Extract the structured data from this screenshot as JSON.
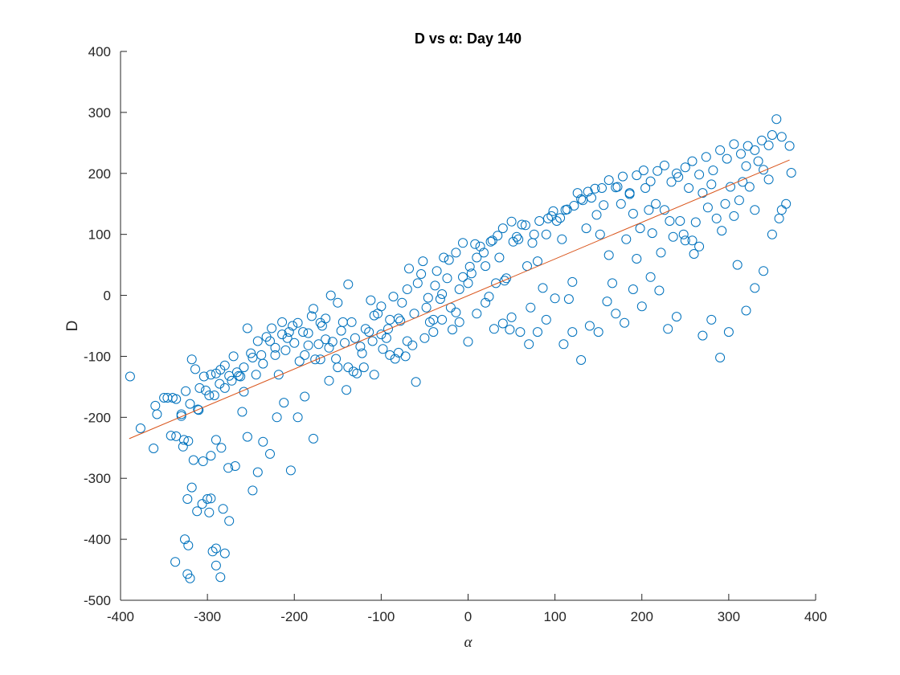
{
  "chart_data": {
    "type": "scatter",
    "title": "D vs α: Day 140",
    "xlabel": "α",
    "ylabel": "D",
    "xlim": [
      -400,
      400
    ],
    "ylim": [
      -500,
      400
    ],
    "xticks": [
      -400,
      -300,
      -200,
      -100,
      0,
      100,
      200,
      300,
      400
    ],
    "yticks": [
      -500,
      -400,
      -300,
      -200,
      -100,
      0,
      100,
      200,
      300,
      400
    ],
    "grid": false,
    "marker_color": "#0072BD",
    "line_color": "#D95319",
    "fit_line": {
      "x": [
        -390,
        370
      ],
      "y": [
        -235,
        222
      ]
    },
    "points": [
      [
        -389,
        -133
      ],
      [
        -377,
        -218
      ],
      [
        -360,
        -181
      ],
      [
        -358,
        -195
      ],
      [
        -362,
        -251
      ],
      [
        -340,
        -168
      ],
      [
        -336,
        -170
      ],
      [
        -330,
        -195
      ],
      [
        -325,
        -157
      ],
      [
        -318,
        -105
      ],
      [
        -314,
        -121
      ],
      [
        -309,
        -152
      ],
      [
        -304,
        -133
      ],
      [
        -298,
        -164
      ],
      [
        -290,
        -128
      ],
      [
        -286,
        -145
      ],
      [
        -280,
        -115
      ],
      [
        -272,
        -140
      ],
      [
        -266,
        -126
      ],
      [
        -262,
        -133
      ],
      [
        -258,
        -118
      ],
      [
        -250,
        -95
      ],
      [
        -244,
        -130
      ],
      [
        -236,
        -112
      ],
      [
        -228,
        -75
      ],
      [
        -222,
        -86
      ],
      [
        -214,
        -64
      ],
      [
        -208,
        -70
      ],
      [
        -202,
        -50
      ],
      [
        -196,
        -45
      ],
      [
        -190,
        -60
      ],
      [
        -184,
        -82
      ],
      [
        -178,
        -22
      ],
      [
        -170,
        -45
      ],
      [
        -164,
        -38
      ],
      [
        -158,
        0
      ],
      [
        -150,
        -12
      ],
      [
        -144,
        -44
      ],
      [
        -138,
        18
      ],
      [
        -130,
        -70
      ],
      [
        -122,
        -95
      ],
      [
        -114,
        -60
      ],
      [
        -108,
        -33
      ],
      [
        -100,
        -18
      ],
      [
        -92,
        -55
      ],
      [
        -86,
        -2
      ],
      [
        -78,
        -42
      ],
      [
        -70,
        10
      ],
      [
        -62,
        -30
      ],
      [
        -54,
        35
      ],
      [
        -46,
        -4
      ],
      [
        -38,
        16
      ],
      [
        -30,
        2
      ],
      [
        -22,
        58
      ],
      [
        -14,
        70
      ],
      [
        -6,
        86
      ],
      [
        2,
        47
      ],
      [
        10,
        62
      ],
      [
        18,
        70
      ],
      [
        26,
        88
      ],
      [
        34,
        98
      ],
      [
        42,
        24
      ],
      [
        50,
        121
      ],
      [
        58,
        92
      ],
      [
        66,
        115
      ],
      [
        74,
        86
      ],
      [
        82,
        122
      ],
      [
        90,
        100
      ],
      [
        98,
        138
      ],
      [
        106,
        127
      ],
      [
        114,
        141
      ],
      [
        122,
        147
      ],
      [
        130,
        158
      ],
      [
        138,
        170
      ],
      [
        146,
        175
      ],
      [
        154,
        176
      ],
      [
        162,
        189
      ],
      [
        170,
        177
      ],
      [
        178,
        195
      ],
      [
        186,
        168
      ],
      [
        194,
        197
      ],
      [
        202,
        205
      ],
      [
        210,
        187
      ],
      [
        218,
        204
      ],
      [
        226,
        213
      ],
      [
        234,
        186
      ],
      [
        242,
        194
      ],
      [
        250,
        210
      ],
      [
        258,
        220
      ],
      [
        266,
        198
      ],
      [
        274,
        227
      ],
      [
        282,
        205
      ],
      [
        290,
        238
      ],
      [
        298,
        224
      ],
      [
        306,
        248
      ],
      [
        314,
        232
      ],
      [
        322,
        245
      ],
      [
        330,
        238
      ],
      [
        338,
        254
      ],
      [
        346,
        246
      ],
      [
        350,
        263
      ],
      [
        355,
        289
      ],
      [
        361,
        260
      ],
      [
        370,
        245
      ],
      [
        372,
        201
      ],
      [
        -336,
        -231
      ],
      [
        -328,
        -248
      ],
      [
        -322,
        -239
      ],
      [
        -316,
        -270
      ],
      [
        -311,
        -187
      ],
      [
        -305,
        -272
      ],
      [
        -296,
        -263
      ],
      [
        -290,
        -237
      ],
      [
        -284,
        -250
      ],
      [
        -276,
        -283
      ],
      [
        -268,
        -280
      ],
      [
        -260,
        -191
      ],
      [
        -254,
        -232
      ],
      [
        -248,
        -320
      ],
      [
        -242,
        -290
      ],
      [
        -236,
        -240
      ],
      [
        -228,
        -260
      ],
      [
        -220,
        -200
      ],
      [
        -212,
        -176
      ],
      [
        -204,
        -287
      ],
      [
        -196,
        -200
      ],
      [
        -188,
        -166
      ],
      [
        -178,
        -235
      ],
      [
        -170,
        -105
      ],
      [
        -160,
        -140
      ],
      [
        -150,
        -118
      ],
      [
        -140,
        -155
      ],
      [
        -132,
        -125
      ],
      [
        -120,
        -118
      ],
      [
        -110,
        -75
      ],
      [
        -100,
        -64
      ],
      [
        -90,
        -98
      ],
      [
        -80,
        -94
      ],
      [
        -70,
        -75
      ],
      [
        -60,
        -142
      ],
      [
        -50,
        -70
      ],
      [
        -40,
        -60
      ],
      [
        -30,
        -40
      ],
      [
        -20,
        -20
      ],
      [
        -10,
        -44
      ],
      [
        0,
        -76
      ],
      [
        10,
        -30
      ],
      [
        20,
        -12
      ],
      [
        30,
        -55
      ],
      [
        40,
        -46
      ],
      [
        50,
        -36
      ],
      [
        60,
        -60
      ],
      [
        70,
        -80
      ],
      [
        80,
        -60
      ],
      [
        90,
        -40
      ],
      [
        100,
        -5
      ],
      [
        110,
        -80
      ],
      [
        120,
        -60
      ],
      [
        130,
        -106
      ],
      [
        140,
        -50
      ],
      [
        150,
        -60
      ],
      [
        160,
        -10
      ],
      [
        170,
        -30
      ],
      [
        180,
        -45
      ],
      [
        190,
        10
      ],
      [
        200,
        -18
      ],
      [
        210,
        30
      ],
      [
        220,
        8
      ],
      [
        230,
        -55
      ],
      [
        240,
        -35
      ],
      [
        250,
        90
      ],
      [
        260,
        68
      ],
      [
        270,
        -66
      ],
      [
        280,
        -40
      ],
      [
        290,
        -102
      ],
      [
        300,
        -60
      ],
      [
        310,
        50
      ],
      [
        320,
        -25
      ],
      [
        330,
        12
      ],
      [
        340,
        40
      ],
      [
        350,
        100
      ],
      [
        358,
        126
      ],
      [
        361,
        140
      ],
      [
        366,
        150
      ],
      [
        -323,
        -334
      ],
      [
        -318,
        -315
      ],
      [
        -312,
        -354
      ],
      [
        -306,
        -342
      ],
      [
        -300,
        -334
      ],
      [
        -294,
        -420
      ],
      [
        -290,
        -415
      ],
      [
        -285,
        -462
      ],
      [
        -280,
        -423
      ],
      [
        -275,
        -370
      ],
      [
        -322,
        -410
      ],
      [
        -326,
        -400
      ],
      [
        -323,
        -457
      ],
      [
        -320,
        -464
      ],
      [
        -337,
        -437
      ],
      [
        -290,
        -443
      ],
      [
        -298,
        -356
      ],
      [
        -282,
        -350
      ],
      [
        -296,
        -333
      ],
      [
        -350,
        -168
      ],
      [
        -346,
        -168
      ],
      [
        -342,
        -230
      ],
      [
        -330,
        -198
      ],
      [
        -327,
        -237
      ],
      [
        -320,
        -178
      ],
      [
        -310,
        -188
      ],
      [
        -302,
        -156
      ],
      [
        -296,
        -130
      ],
      [
        -292,
        -164
      ],
      [
        -285,
        -122
      ],
      [
        -280,
        -152
      ],
      [
        -275,
        -132
      ],
      [
        -270,
        -100
      ],
      [
        -264,
        -132
      ],
      [
        -258,
        -158
      ],
      [
        -254,
        -54
      ],
      [
        -248,
        -102
      ],
      [
        -242,
        -75
      ],
      [
        -238,
        -98
      ],
      [
        -232,
        -68
      ],
      [
        -226,
        -54
      ],
      [
        -222,
        -98
      ],
      [
        -218,
        -130
      ],
      [
        -214,
        -44
      ],
      [
        -210,
        -90
      ],
      [
        -206,
        -60
      ],
      [
        -200,
        -78
      ],
      [
        -194,
        -108
      ],
      [
        -188,
        -98
      ],
      [
        -184,
        -62
      ],
      [
        -180,
        -34
      ],
      [
        -176,
        -105
      ],
      [
        -172,
        -80
      ],
      [
        -168,
        -50
      ],
      [
        -164,
        -72
      ],
      [
        -160,
        -86
      ],
      [
        -156,
        -76
      ],
      [
        -152,
        -104
      ],
      [
        -146,
        -58
      ],
      [
        -142,
        -78
      ],
      [
        -138,
        -118
      ],
      [
        -134,
        -44
      ],
      [
        -128,
        -128
      ],
      [
        -124,
        -84
      ],
      [
        -118,
        -55
      ],
      [
        -112,
        -8
      ],
      [
        -108,
        -130
      ],
      [
        -104,
        -30
      ],
      [
        -98,
        -88
      ],
      [
        -94,
        -70
      ],
      [
        -90,
        -40
      ],
      [
        -84,
        -104
      ],
      [
        -80,
        -38
      ],
      [
        -76,
        -12
      ],
      [
        -72,
        -100
      ],
      [
        -68,
        44
      ],
      [
        -64,
        -82
      ],
      [
        -58,
        20
      ],
      [
        -52,
        56
      ],
      [
        -48,
        -20
      ],
      [
        -44,
        -44
      ],
      [
        -40,
        -40
      ],
      [
        -36,
        40
      ],
      [
        -32,
        -6
      ],
      [
        -28,
        62
      ],
      [
        -24,
        28
      ],
      [
        -18,
        -56
      ],
      [
        -14,
        -28
      ],
      [
        -10,
        10
      ],
      [
        -6,
        30
      ],
      [
        0,
        20
      ],
      [
        4,
        36
      ],
      [
        8,
        84
      ],
      [
        14,
        80
      ],
      [
        20,
        48
      ],
      [
        24,
        -2
      ],
      [
        28,
        90
      ],
      [
        32,
        20
      ],
      [
        36,
        62
      ],
      [
        40,
        110
      ],
      [
        44,
        28
      ],
      [
        48,
        -56
      ],
      [
        52,
        88
      ],
      [
        56,
        96
      ],
      [
        62,
        116
      ],
      [
        68,
        48
      ],
      [
        72,
        -20
      ],
      [
        76,
        100
      ],
      [
        80,
        56
      ],
      [
        86,
        12
      ],
      [
        92,
        126
      ],
      [
        96,
        130
      ],
      [
        102,
        122
      ],
      [
        108,
        92
      ],
      [
        112,
        140
      ],
      [
        116,
        -6
      ],
      [
        120,
        22
      ],
      [
        126,
        168
      ],
      [
        132,
        156
      ],
      [
        136,
        110
      ],
      [
        142,
        160
      ],
      [
        148,
        132
      ],
      [
        152,
        100
      ],
      [
        156,
        148
      ],
      [
        162,
        66
      ],
      [
        166,
        20
      ],
      [
        172,
        178
      ],
      [
        176,
        150
      ],
      [
        182,
        92
      ],
      [
        186,
        166
      ],
      [
        190,
        134
      ],
      [
        194,
        60
      ],
      [
        198,
        110
      ],
      [
        204,
        176
      ],
      [
        208,
        140
      ],
      [
        212,
        102
      ],
      [
        216,
        150
      ],
      [
        222,
        70
      ],
      [
        226,
        140
      ],
      [
        232,
        122
      ],
      [
        236,
        96
      ],
      [
        240,
        200
      ],
      [
        244,
        122
      ],
      [
        248,
        100
      ],
      [
        254,
        176
      ],
      [
        258,
        90
      ],
      [
        262,
        120
      ],
      [
        266,
        80
      ],
      [
        270,
        168
      ],
      [
        276,
        144
      ],
      [
        280,
        182
      ],
      [
        286,
        126
      ],
      [
        292,
        106
      ],
      [
        296,
        150
      ],
      [
        302,
        178
      ],
      [
        306,
        130
      ],
      [
        312,
        156
      ],
      [
        316,
        186
      ],
      [
        320,
        212
      ],
      [
        324,
        178
      ],
      [
        330,
        140
      ],
      [
        334,
        220
      ],
      [
        340,
        206
      ],
      [
        346,
        190
      ]
    ]
  }
}
